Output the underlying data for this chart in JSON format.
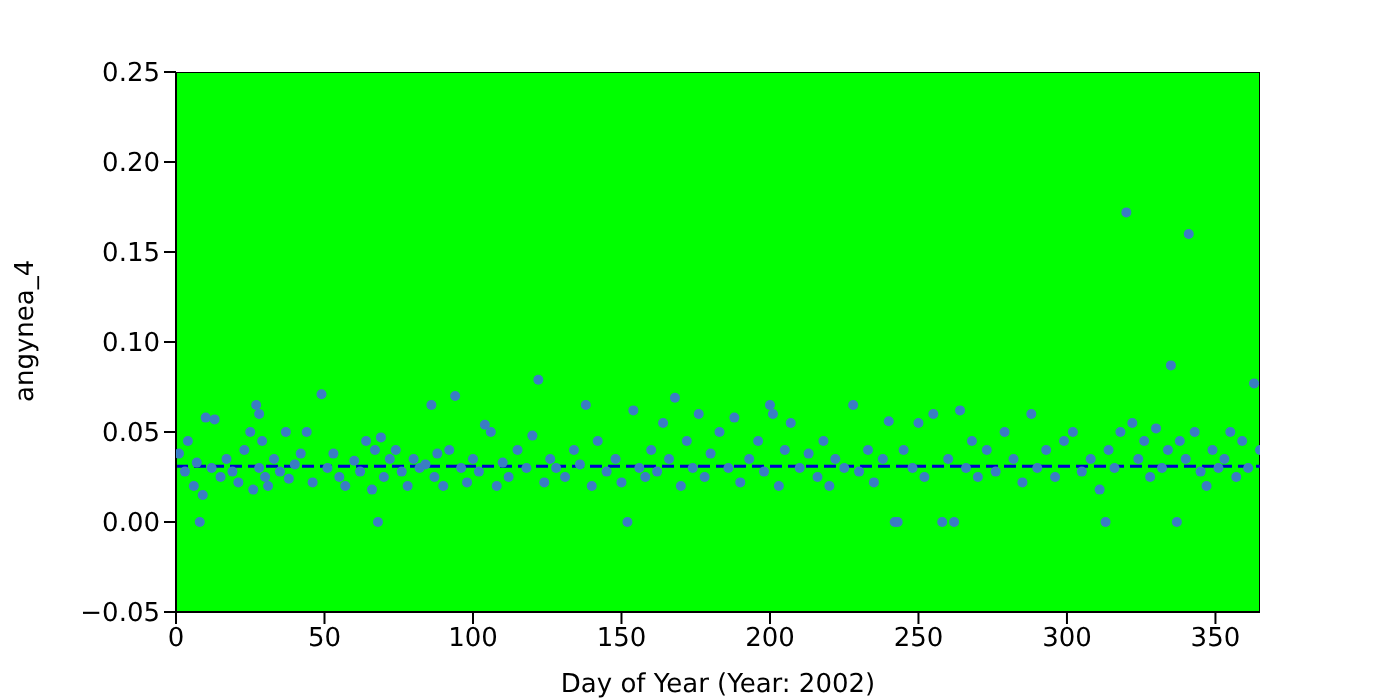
{
  "chart_data": {
    "type": "scatter",
    "xlabel": "Day of Year (Year: 2002)",
    "ylabel": "angynea_4",
    "xlim": [
      0,
      365
    ],
    "xticks": [
      0,
      50,
      100,
      150,
      200,
      250,
      300,
      350
    ],
    "ylim": [
      -0.05,
      0.25
    ],
    "yticks": [
      -0.05,
      {
        "value": 0,
        "label": "0.00"
      },
      0.05,
      {
        "value": 0.1,
        "label": "0.10"
      },
      0.15,
      {
        "value": 0.2,
        "label": "0.20"
      },
      0.25
    ],
    "marker": "circle",
    "grid": false,
    "legend": false,
    "bands": [
      {
        "axis": "y",
        "from": -0.05,
        "to": 0.25,
        "color": "#00ff00"
      }
    ],
    "ref_lines": [
      {
        "axis": "y",
        "value": 0.031,
        "color": "#0000cc",
        "line_style": "dashed"
      }
    ],
    "series": [
      {
        "color": "#3a7dc4",
        "x": [
          1,
          3,
          4,
          6,
          7,
          8,
          9,
          10,
          12,
          13,
          15,
          17,
          19,
          21,
          23,
          25,
          26,
          27,
          28,
          28,
          29,
          30,
          31,
          33,
          35,
          37,
          38,
          40,
          42,
          44,
          46,
          49,
          51,
          53,
          55,
          57,
          60,
          62,
          64,
          66,
          67,
          68,
          69,
          70,
          72,
          74,
          76,
          78,
          80,
          82,
          84,
          86,
          87,
          88,
          90,
          92,
          94,
          96,
          98,
          100,
          102,
          104,
          106,
          108,
          110,
          112,
          115,
          118,
          120,
          122,
          124,
          126,
          128,
          131,
          134,
          136,
          138,
          140,
          142,
          145,
          148,
          150,
          152,
          154,
          156,
          158,
          160,
          162,
          164,
          166,
          168,
          170,
          172,
          174,
          176,
          178,
          180,
          183,
          186,
          188,
          190,
          193,
          196,
          198,
          200,
          201,
          203,
          205,
          207,
          210,
          213,
          216,
          218,
          220,
          222,
          225,
          228,
          230,
          233,
          235,
          238,
          240,
          242,
          243,
          245,
          248,
          250,
          252,
          255,
          258,
          260,
          262,
          264,
          266,
          268,
          270,
          273,
          276,
          279,
          282,
          285,
          288,
          290,
          293,
          296,
          299,
          302,
          305,
          308,
          311,
          313,
          314,
          316,
          318,
          320,
          322,
          324,
          326,
          328,
          330,
          332,
          334,
          335,
          337,
          338,
          340,
          341,
          343,
          345,
          347,
          349,
          351,
          353,
          355,
          357,
          359,
          361,
          363,
          365
        ],
        "values": [
          0.038,
          0.028,
          0.045,
          0.02,
          0.033,
          0.0,
          0.015,
          0.058,
          0.03,
          0.057,
          0.025,
          0.035,
          0.028,
          0.022,
          0.04,
          0.05,
          0.018,
          0.065,
          0.06,
          0.03,
          0.045,
          0.025,
          0.02,
          0.035,
          0.028,
          0.05,
          0.024,
          0.032,
          0.038,
          0.05,
          0.022,
          0.071,
          0.03,
          0.038,
          0.025,
          0.02,
          0.034,
          0.028,
          0.045,
          0.018,
          0.04,
          0.0,
          0.047,
          0.025,
          0.035,
          0.04,
          0.028,
          0.02,
          0.035,
          0.03,
          0.032,
          0.065,
          0.025,
          0.038,
          0.02,
          0.04,
          0.07,
          0.03,
          0.022,
          0.035,
          0.028,
          0.054,
          0.05,
          0.02,
          0.033,
          0.025,
          0.04,
          0.03,
          0.048,
          0.079,
          0.022,
          0.035,
          0.03,
          0.025,
          0.04,
          0.032,
          0.065,
          0.02,
          0.045,
          0.028,
          0.035,
          0.022,
          0.0,
          0.062,
          0.03,
          0.025,
          0.04,
          0.028,
          0.055,
          0.035,
          0.069,
          0.02,
          0.045,
          0.03,
          0.06,
          0.025,
          0.038,
          0.05,
          0.03,
          0.058,
          0.022,
          0.035,
          0.045,
          0.028,
          0.065,
          0.06,
          0.02,
          0.04,
          0.055,
          0.03,
          0.038,
          0.025,
          0.045,
          0.02,
          0.035,
          0.03,
          0.065,
          0.028,
          0.04,
          0.022,
          0.035,
          0.056,
          0.0,
          0.0,
          0.04,
          0.03,
          0.055,
          0.025,
          0.06,
          0.0,
          0.035,
          0.0,
          0.062,
          0.03,
          0.045,
          0.025,
          0.04,
          0.028,
          0.05,
          0.035,
          0.022,
          0.06,
          0.03,
          0.04,
          0.025,
          0.045,
          0.05,
          0.028,
          0.035,
          0.018,
          0.0,
          0.04,
          0.03,
          0.05,
          0.172,
          0.055,
          0.035,
          0.045,
          0.025,
          0.052,
          0.03,
          0.04,
          0.087,
          0.0,
          0.045,
          0.035,
          0.16,
          0.05,
          0.028,
          0.02,
          0.04,
          0.03,
          0.035,
          0.05,
          0.025,
          0.045,
          0.03,
          0.077,
          0.04
        ]
      }
    ]
  }
}
